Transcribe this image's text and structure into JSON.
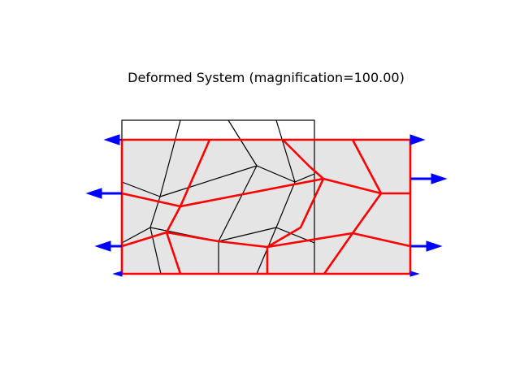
{
  "title": "Deformed System (magnification=100.00)",
  "colors": {
    "undeformed_mesh": "#000000",
    "deformed_mesh": "#ff0000",
    "deformed_fill": "#e5e5e5",
    "arrows": "#0000ff"
  },
  "legend": null
}
